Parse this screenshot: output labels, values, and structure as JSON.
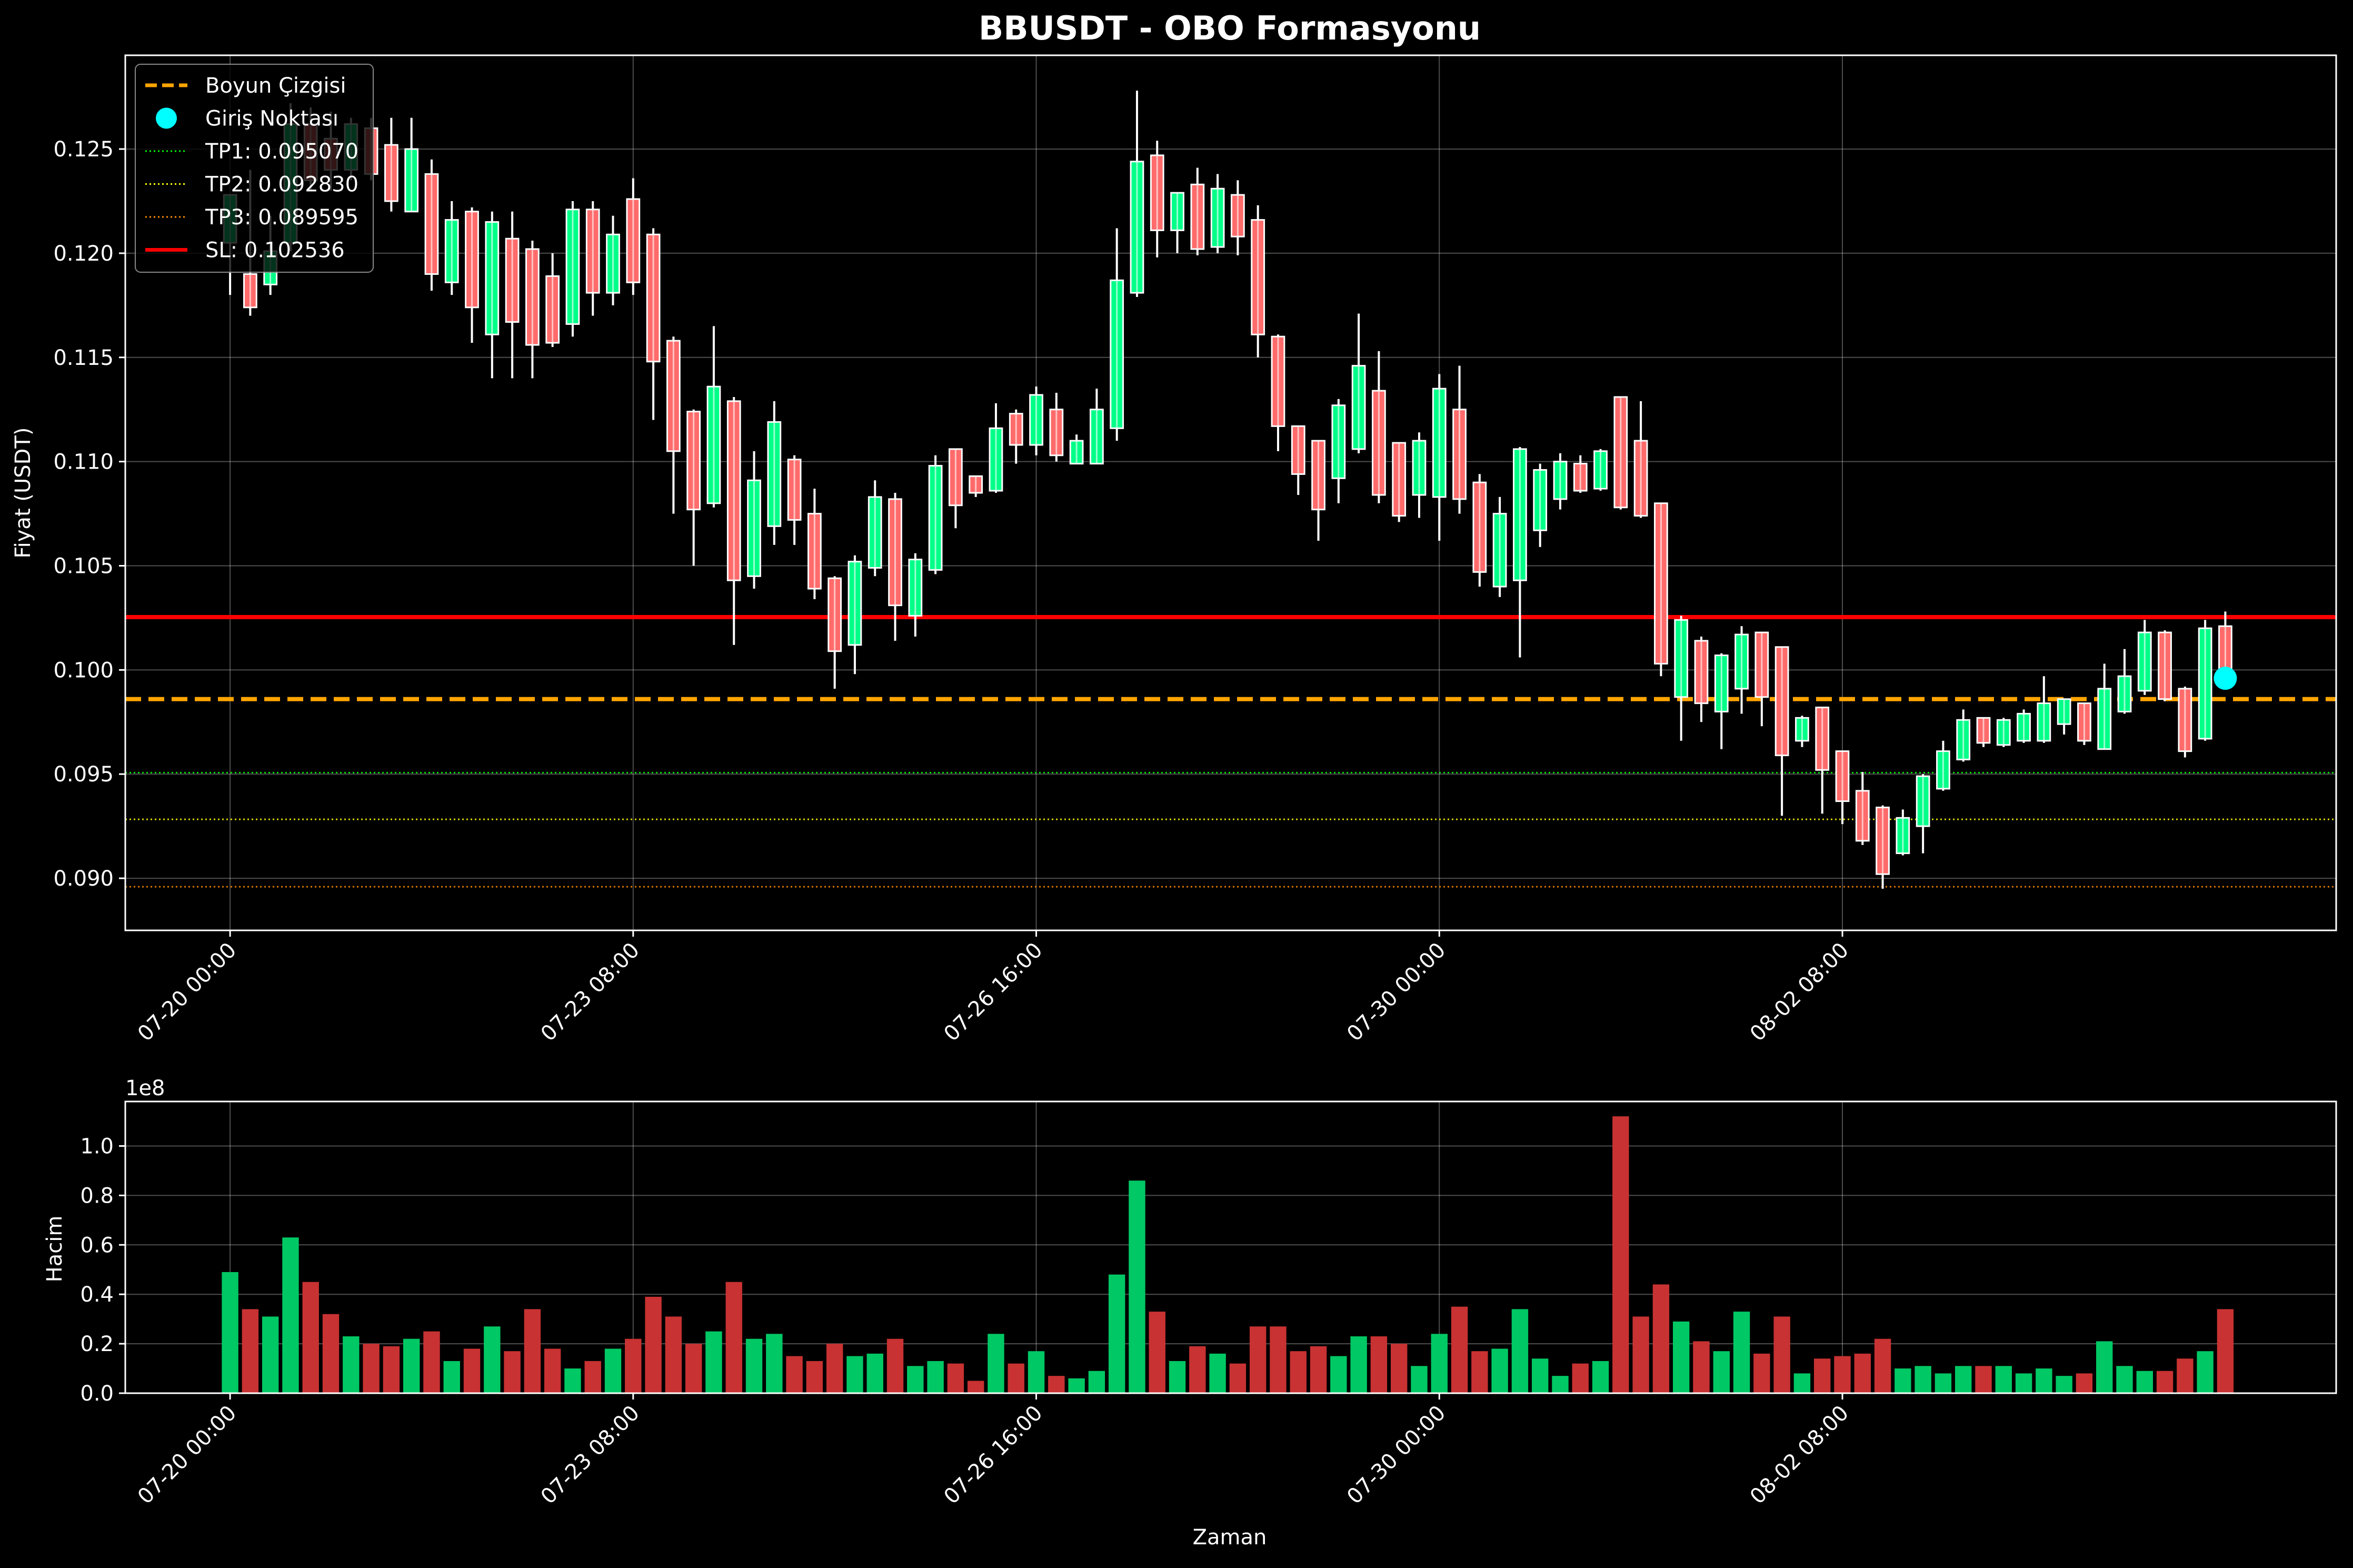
{
  "chart_data": [
    {
      "type": "candlestick",
      "title": "BBUSDT - OBO Formasyonu",
      "ylabel": "Fiyat (USDT)",
      "xlabel": "",
      "ylim": [
        0.0875,
        0.1295
      ],
      "x_range": [
        -5.2,
        104.5
      ],
      "y_ticks": [
        0.09,
        0.095,
        0.1,
        0.105,
        0.11,
        0.115,
        0.12,
        0.125
      ],
      "x_ticks": [
        {
          "index": 0,
          "label": "07-20 00:00"
        },
        {
          "index": 20,
          "label": "07-23 08:00"
        },
        {
          "index": 40,
          "label": "07-26 16:00"
        },
        {
          "index": 60,
          "label": "07-30 00:00"
        },
        {
          "index": 80,
          "label": "08-02 08:00"
        }
      ],
      "candle_interval": "4h",
      "grid": true,
      "legend_position": "top-left",
      "legend": [
        {
          "label": "Boyun Çizgisi",
          "style": "dashed",
          "color": "#FFA500"
        },
        {
          "label": "Giriş Noktası",
          "style": "marker",
          "color": "#00FFFF"
        },
        {
          "label": "TP1: 0.095070",
          "style": "dotted",
          "color": "#00FF00"
        },
        {
          "label": "TP2: 0.092830",
          "style": "dotted",
          "color": "#FFFF00"
        },
        {
          "label": "TP3: 0.089595",
          "style": "dotted",
          "color": "#FF8C00"
        },
        {
          "label": "SL: 0.102536",
          "style": "solid",
          "color": "#FF0000"
        }
      ],
      "lines": {
        "neckline": 0.0986,
        "tp1": 0.09507,
        "tp2": 0.09283,
        "tp3": 0.089595,
        "sl": 0.102536
      },
      "entry_point": {
        "index": 99,
        "price": 0.0996
      },
      "candles": [
        [
          0,
          0.1205,
          0.1228,
          0.118,
          0.1228
        ],
        [
          1,
          0.119,
          0.124,
          0.117,
          0.1174
        ],
        [
          2,
          0.1185,
          0.1218,
          0.118,
          0.1201
        ],
        [
          3,
          0.1205,
          0.1272,
          0.1201,
          0.1262
        ],
        [
          4,
          0.1262,
          0.127,
          0.123,
          0.1235
        ],
        [
          5,
          0.1255,
          0.1268,
          0.123,
          0.124
        ],
        [
          6,
          0.124,
          0.1265,
          0.1235,
          0.1262
        ],
        [
          7,
          0.126,
          0.1265,
          0.1235,
          0.1238
        ],
        [
          8,
          0.1252,
          0.1265,
          0.122,
          0.1225
        ],
        [
          9,
          0.122,
          0.1265,
          0.122,
          0.125
        ],
        [
          10,
          0.1238,
          0.1245,
          0.1182,
          0.119
        ],
        [
          11,
          0.1186,
          0.1225,
          0.118,
          0.1216
        ],
        [
          12,
          0.122,
          0.1222,
          0.1157,
          0.1174
        ],
        [
          13,
          0.1161,
          0.122,
          0.114,
          0.1215
        ],
        [
          14,
          0.1207,
          0.122,
          0.114,
          0.1167
        ],
        [
          15,
          0.1202,
          0.1206,
          0.114,
          0.1156
        ],
        [
          16,
          0.1189,
          0.12,
          0.1155,
          0.1157
        ],
        [
          17,
          0.1166,
          0.1225,
          0.116,
          0.1221
        ],
        [
          18,
          0.1221,
          0.1225,
          0.117,
          0.1181
        ],
        [
          19,
          0.1181,
          0.1218,
          0.1175,
          0.1209
        ],
        [
          20,
          0.1226,
          0.1236,
          0.118,
          0.1186
        ],
        [
          21,
          0.1209,
          0.1212,
          0.112,
          0.1148
        ],
        [
          22,
          0.1158,
          0.116,
          0.1075,
          0.1105
        ],
        [
          23,
          0.1124,
          0.1125,
          0.105,
          0.1077
        ],
        [
          24,
          0.108,
          0.1165,
          0.1078,
          0.1136
        ],
        [
          25,
          0.1129,
          0.1131,
          0.1012,
          0.1043
        ],
        [
          26,
          0.1045,
          0.1105,
          0.1039,
          0.1091
        ],
        [
          27,
          0.1069,
          0.1129,
          0.106,
          0.1119
        ],
        [
          28,
          0.1101,
          0.1103,
          0.106,
          0.1072
        ],
        [
          29,
          0.1075,
          0.1087,
          0.1034,
          0.1039
        ],
        [
          30,
          0.1044,
          0.1045,
          0.0991,
          0.1009
        ],
        [
          31,
          0.1012,
          0.1055,
          0.0998,
          0.1052
        ],
        [
          32,
          0.1049,
          0.1091,
          0.1045,
          0.1083
        ],
        [
          33,
          0.1082,
          0.1085,
          0.1014,
          0.1031
        ],
        [
          34,
          0.1026,
          0.1056,
          0.1016,
          0.1053
        ],
        [
          35,
          0.1048,
          0.1103,
          0.1046,
          0.1098
        ],
        [
          36,
          0.1106,
          0.1106,
          0.1068,
          0.1079
        ],
        [
          37,
          0.1093,
          0.1093,
          0.1083,
          0.1085
        ],
        [
          38,
          0.1086,
          0.1128,
          0.1085,
          0.1116
        ],
        [
          39,
          0.1123,
          0.1125,
          0.1099,
          0.1108
        ],
        [
          40,
          0.1108,
          0.1136,
          0.1103,
          0.1132
        ],
        [
          41,
          0.1125,
          0.1133,
          0.11,
          0.1103
        ],
        [
          42,
          0.1099,
          0.1113,
          0.1099,
          0.111
        ],
        [
          43,
          0.1099,
          0.1135,
          0.1099,
          0.1125
        ],
        [
          44,
          0.1116,
          0.1212,
          0.111,
          0.1187
        ],
        [
          45,
          0.1181,
          0.1278,
          0.1179,
          0.1244
        ],
        [
          46,
          0.1247,
          0.1254,
          0.1198,
          0.1211
        ],
        [
          47,
          0.1211,
          0.1229,
          0.12,
          0.1229
        ],
        [
          48,
          0.1233,
          0.1241,
          0.1199,
          0.1202
        ],
        [
          49,
          0.1203,
          0.1238,
          0.12,
          0.1231
        ],
        [
          50,
          0.1228,
          0.1235,
          0.1199,
          0.1208
        ],
        [
          51,
          0.1216,
          0.1223,
          0.115,
          0.1161
        ],
        [
          52,
          0.116,
          0.1161,
          0.1105,
          0.1117
        ],
        [
          53,
          0.1117,
          0.1117,
          0.1084,
          0.1094
        ],
        [
          54,
          0.111,
          0.111,
          0.1062,
          0.1077
        ],
        [
          55,
          0.1092,
          0.113,
          0.108,
          0.1127
        ],
        [
          56,
          0.1106,
          0.1171,
          0.1104,
          0.1146
        ],
        [
          57,
          0.1134,
          0.1153,
          0.108,
          0.1084
        ],
        [
          58,
          0.1109,
          0.1109,
          0.1071,
          0.1074
        ],
        [
          59,
          0.1084,
          0.1114,
          0.1073,
          0.111
        ],
        [
          60,
          0.1083,
          0.1142,
          0.1062,
          0.1135
        ],
        [
          61,
          0.1125,
          0.1146,
          0.1075,
          0.1082
        ],
        [
          62,
          0.109,
          0.1094,
          0.104,
          0.1047
        ],
        [
          63,
          0.104,
          0.1083,
          0.1035,
          0.1075
        ],
        [
          64,
          0.1043,
          0.1107,
          0.1006,
          0.1106
        ],
        [
          65,
          0.1067,
          0.1099,
          0.1059,
          0.1096
        ],
        [
          66,
          0.1082,
          0.1104,
          0.1077,
          0.11
        ],
        [
          67,
          0.1099,
          0.1103,
          0.1085,
          0.1086
        ],
        [
          68,
          0.1087,
          0.1106,
          0.1086,
          0.1105
        ],
        [
          69,
          0.1131,
          0.1131,
          0.1077,
          0.1078
        ],
        [
          70,
          0.111,
          0.1129,
          0.1073,
          0.1074
        ],
        [
          71,
          0.108,
          0.108,
          0.0997,
          0.1003
        ],
        [
          72,
          0.0987,
          0.1026,
          0.0966,
          0.1024
        ],
        [
          73,
          0.1014,
          0.1016,
          0.0975,
          0.0984
        ],
        [
          74,
          0.098,
          0.1008,
          0.0962,
          0.1007
        ],
        [
          75,
          0.0991,
          0.1021,
          0.0979,
          0.1017
        ],
        [
          76,
          0.1018,
          0.1018,
          0.0973,
          0.0987
        ],
        [
          77,
          0.1011,
          0.1011,
          0.093,
          0.0959
        ],
        [
          78,
          0.0966,
          0.0978,
          0.0963,
          0.0977
        ],
        [
          79,
          0.0982,
          0.0982,
          0.0931,
          0.0952
        ],
        [
          80,
          0.0961,
          0.0961,
          0.0926,
          0.0937
        ],
        [
          81,
          0.0942,
          0.0951,
          0.0916,
          0.0918
        ],
        [
          82,
          0.0934,
          0.0935,
          0.0895,
          0.0902
        ],
        [
          83,
          0.0912,
          0.0933,
          0.0911,
          0.0929
        ],
        [
          84,
          0.0925,
          0.095,
          0.0912,
          0.0949
        ],
        [
          85,
          0.0943,
          0.0966,
          0.0942,
          0.0961
        ],
        [
          86,
          0.0957,
          0.0981,
          0.0956,
          0.0976
        ],
        [
          87,
          0.0977,
          0.0977,
          0.0963,
          0.0965
        ],
        [
          88,
          0.0964,
          0.0977,
          0.0963,
          0.0976
        ],
        [
          89,
          0.0966,
          0.0981,
          0.0965,
          0.0979
        ],
        [
          90,
          0.0966,
          0.0997,
          0.0965,
          0.0984
        ],
        [
          91,
          0.0974,
          0.0986,
          0.0969,
          0.0986
        ],
        [
          92,
          0.0984,
          0.0984,
          0.0964,
          0.0966
        ],
        [
          93,
          0.0962,
          0.1003,
          0.0962,
          0.0991
        ],
        [
          94,
          0.098,
          0.101,
          0.0979,
          0.0997
        ],
        [
          95,
          0.099,
          0.1024,
          0.0988,
          0.1018
        ],
        [
          96,
          0.1018,
          0.1019,
          0.0985,
          0.0986
        ],
        [
          97,
          0.0991,
          0.0992,
          0.0958,
          0.0961
        ],
        [
          98,
          0.0967,
          0.1024,
          0.0966,
          0.102
        ],
        [
          99,
          0.1021,
          0.1028,
          0.0995,
          0.0996
        ]
      ]
    },
    {
      "type": "bar",
      "title": "",
      "xlabel": "Zaman",
      "ylabel": "Hacim",
      "scale_label": "1e8",
      "ylim": [
        0,
        1.18
      ],
      "y_ticks": [
        0.0,
        0.2,
        0.4,
        0.6,
        0.8,
        1.0
      ],
      "y_tick_labels": [
        "0.0",
        "0.2",
        "0.4",
        "0.6",
        "0.8",
        "1.0"
      ],
      "x_ticks": [
        {
          "index": 0,
          "label": "07-20 00:00"
        },
        {
          "index": 20,
          "label": "07-23 08:00"
        },
        {
          "index": 40,
          "label": "07-26 16:00"
        },
        {
          "index": 60,
          "label": "07-30 00:00"
        },
        {
          "index": 80,
          "label": "08-02 08:00"
        }
      ],
      "grid": true,
      "colors": {
        "up": "#00C864",
        "down": "#C83232"
      },
      "volumes": [
        0.49,
        0.34,
        0.31,
        0.63,
        0.45,
        0.32,
        0.23,
        0.2,
        0.19,
        0.22,
        0.25,
        0.13,
        0.18,
        0.27,
        0.17,
        0.34,
        0.18,
        0.1,
        0.13,
        0.18,
        0.22,
        0.39,
        0.31,
        0.2,
        0.25,
        0.45,
        0.22,
        0.24,
        0.15,
        0.13,
        0.2,
        0.15,
        0.16,
        0.22,
        0.11,
        0.13,
        0.12,
        0.05,
        0.24,
        0.12,
        0.17,
        0.07,
        0.06,
        0.09,
        0.48,
        0.86,
        0.33,
        0.13,
        0.19,
        0.16,
        0.12,
        0.27,
        0.27,
        0.17,
        0.19,
        0.15,
        0.23,
        0.23,
        0.2,
        0.11,
        0.24,
        0.35,
        0.17,
        0.18,
        0.34,
        0.14,
        0.07,
        0.12,
        0.13,
        1.12,
        0.31,
        0.44,
        0.29,
        0.21,
        0.17,
        0.33,
        0.16,
        0.31,
        0.08,
        0.14,
        0.15,
        0.16,
        0.22,
        0.1,
        0.11,
        0.08,
        0.11,
        0.11,
        0.11,
        0.08,
        0.1,
        0.07,
        0.08,
        0.21,
        0.11,
        0.09,
        0.09,
        0.14,
        0.17,
        0.34
      ]
    }
  ],
  "colors": {
    "background": "#000000",
    "up_candle": "#00FF88",
    "down_candle": "#FF6B6B",
    "grid": "#444444",
    "axis": "#FFFFFF"
  }
}
